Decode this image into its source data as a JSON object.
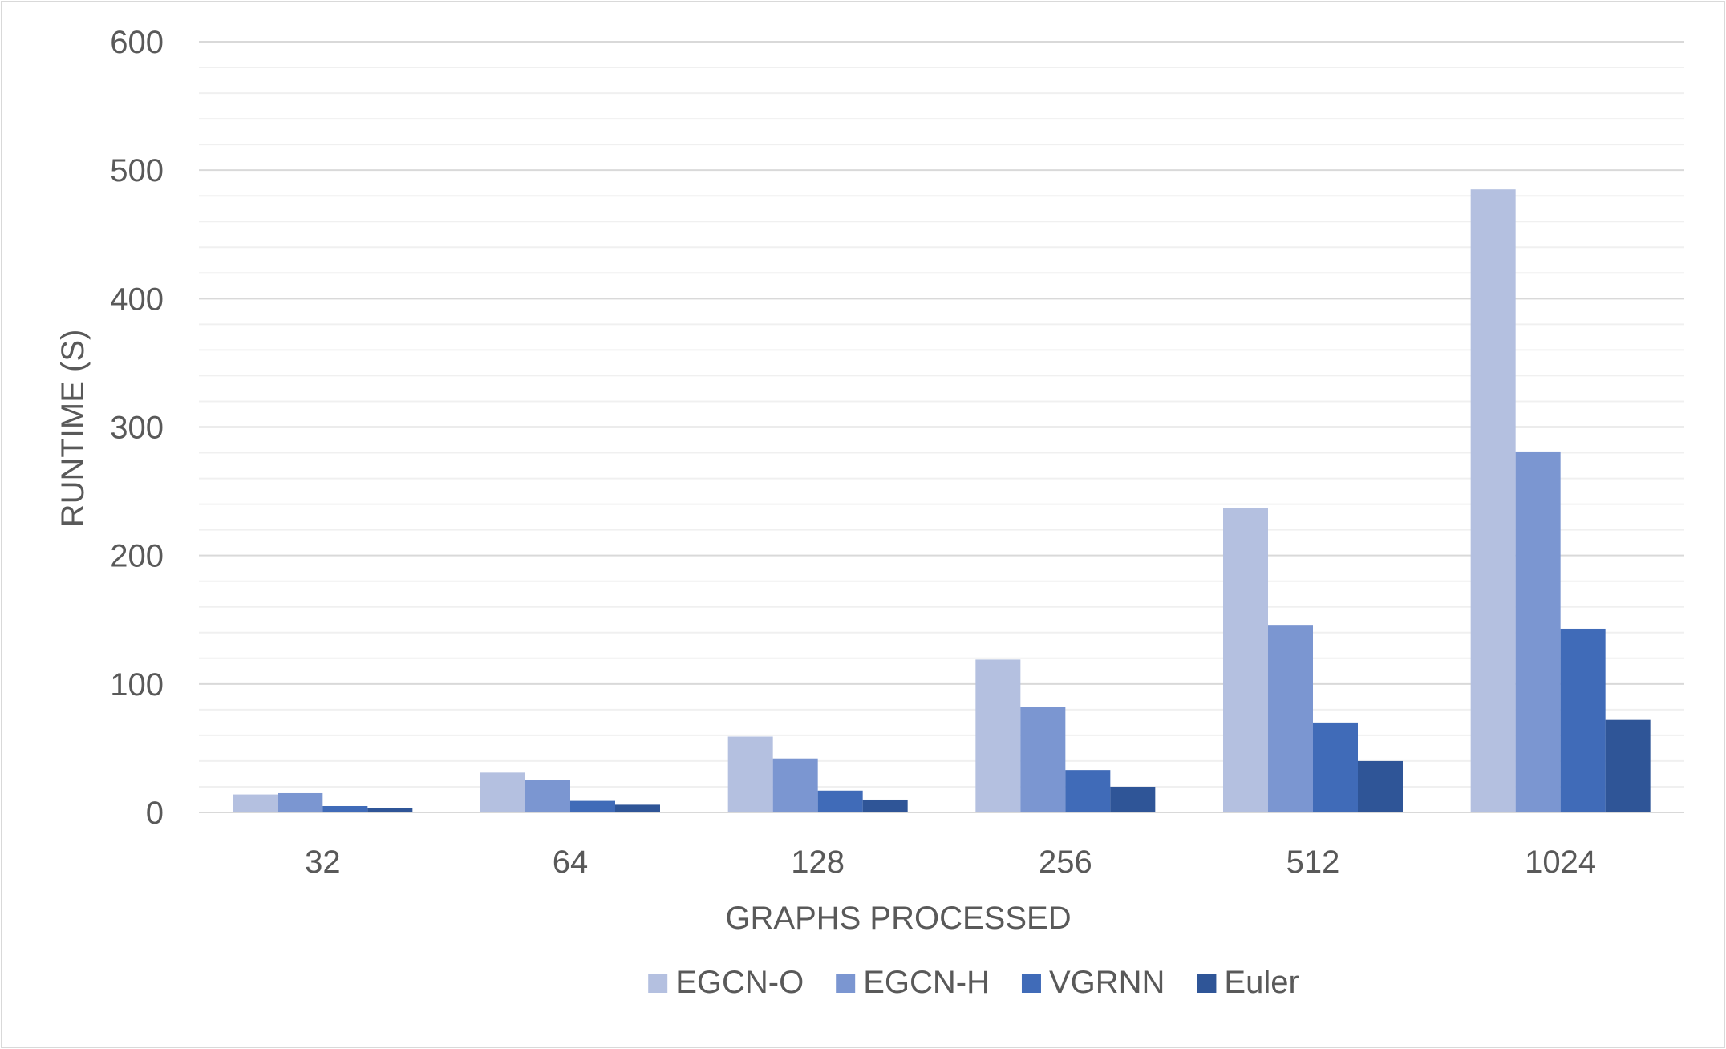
{
  "chart_data": {
    "type": "bar",
    "xlabel": "GRAPHS PROCESSED",
    "ylabel": "RUNTIME (S)",
    "ylim": [
      0,
      600
    ],
    "y_ticks": [
      0,
      100,
      200,
      300,
      400,
      500,
      600
    ],
    "minor_gridlines": true,
    "grid": true,
    "legend_position": "bottom",
    "categories": [
      "32",
      "64",
      "128",
      "256",
      "512",
      "1024"
    ],
    "series": [
      {
        "name": "EGCN-O",
        "color": "#b4c0e0",
        "values": [
          14,
          31,
          59,
          119,
          237,
          485
        ]
      },
      {
        "name": "EGCN-H",
        "color": "#7b96d1",
        "values": [
          15,
          25,
          42,
          82,
          146,
          281
        ]
      },
      {
        "name": "VGRNN",
        "color": "#406bb8",
        "values": [
          5,
          9,
          17,
          33,
          70,
          143
        ]
      },
      {
        "name": "Euler",
        "color": "#2f5597",
        "values": [
          3.5,
          6,
          10,
          20,
          40,
          72
        ]
      }
    ]
  }
}
